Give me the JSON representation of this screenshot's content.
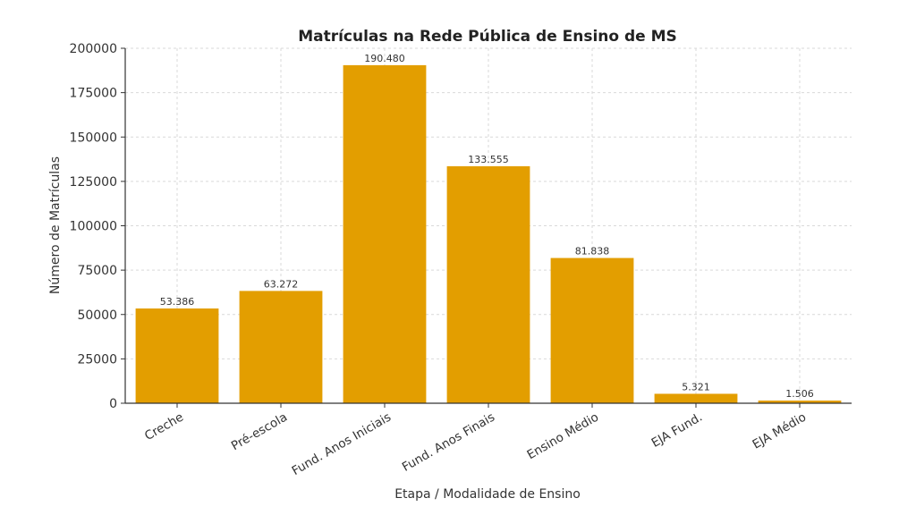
{
  "chart_data": {
    "type": "bar",
    "title": "Matrículas na Rede Pública de Ensino de MS",
    "xlabel": "Etapa / Modalidade de Ensino",
    "ylabel": "Número de Matrículas",
    "categories": [
      "Creche",
      "Pré-escola",
      "Fund. Anos Iniciais",
      "Fund. Anos Finais",
      "Ensino Médio",
      "EJA Fund.",
      "EJA Médio"
    ],
    "values": [
      53386,
      63272,
      190480,
      133555,
      81838,
      5321,
      1506
    ],
    "value_labels": [
      "53.386",
      "63.272",
      "190.480",
      "133.555",
      "81.838",
      "5.321",
      "1.506"
    ],
    "ylim": [
      0,
      200000
    ],
    "yticks": [
      0,
      25000,
      50000,
      75000,
      100000,
      125000,
      150000,
      175000,
      200000
    ],
    "ytick_labels": [
      "0",
      "25000",
      "50000",
      "75000",
      "100000",
      "125000",
      "150000",
      "175000",
      "200000"
    ],
    "grid": true,
    "bar_color": "#E39E00"
  }
}
